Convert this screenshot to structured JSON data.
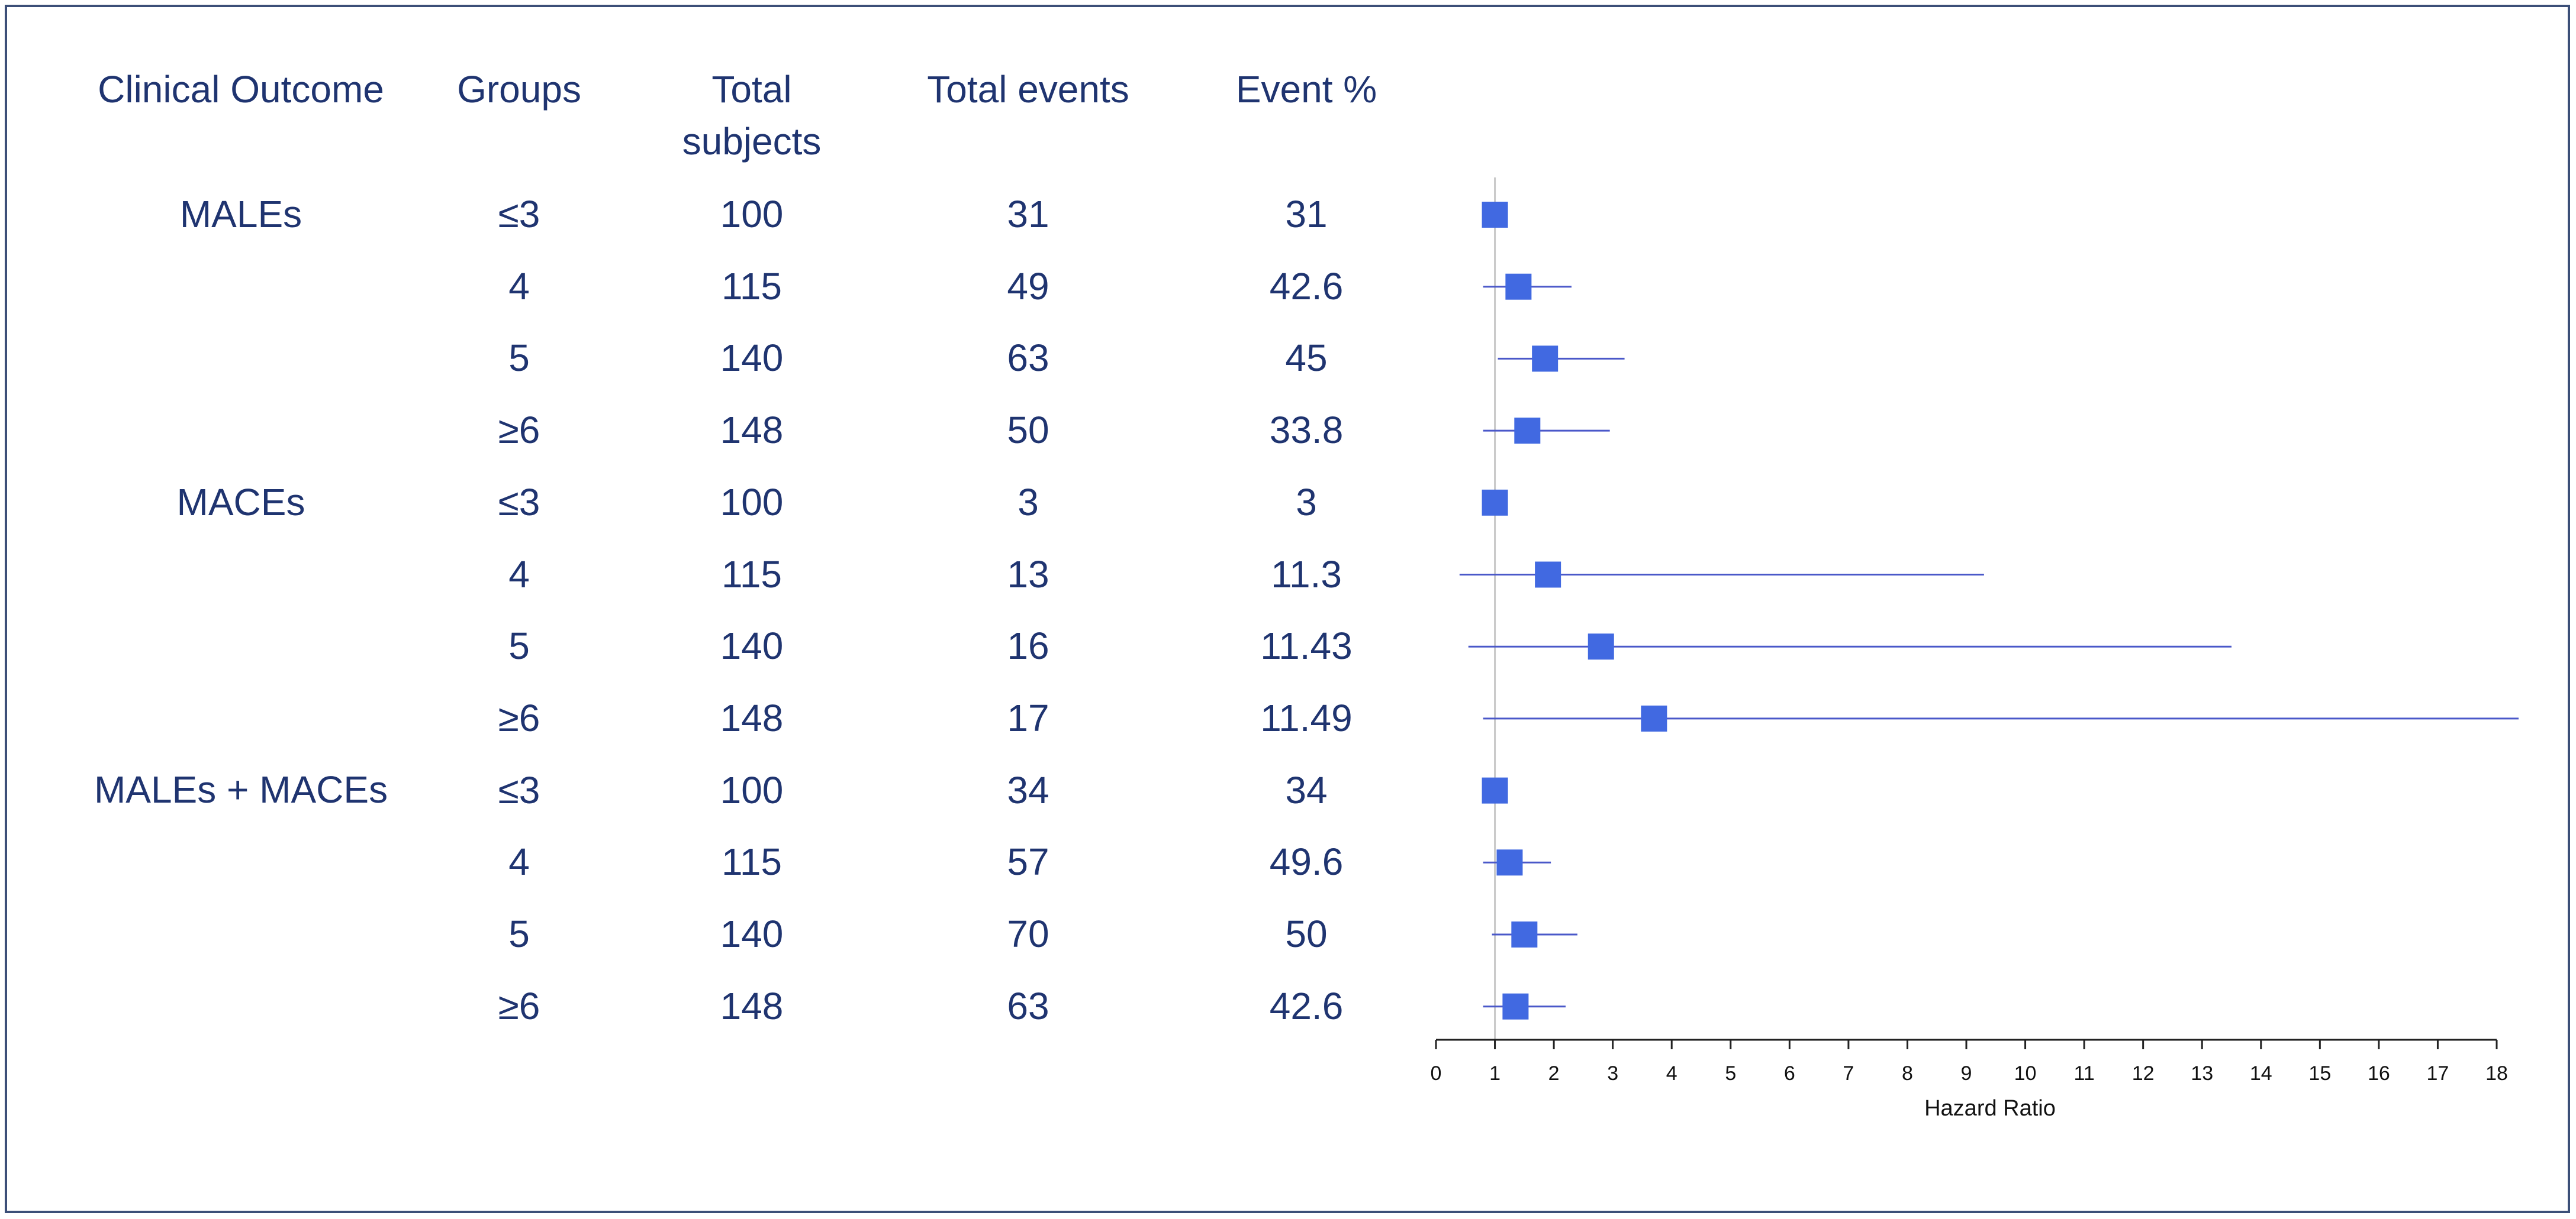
{
  "colors": {
    "text": "#1f3470",
    "marker": "#4169e1",
    "ci_line": "#4a58c9",
    "ref_line": "#c8c8c8",
    "axis": "#222222",
    "border": "#3c4f78"
  },
  "headers": {
    "outcome": "Clinical Outcome",
    "groups": "Groups",
    "total_subjects_1": "Total",
    "total_subjects_2": "subjects",
    "total_events": "Total events",
    "event_pct": "Event %"
  },
  "outcomes": [
    "MALEs",
    "MACEs",
    "MALEs + MACEs"
  ],
  "rows": [
    {
      "group": "≤3",
      "subjects": "100",
      "events": "31",
      "pct": "31"
    },
    {
      "group": "4",
      "subjects": "115",
      "events": "49",
      "pct": "42.6"
    },
    {
      "group": "5",
      "subjects": "140",
      "events": "63",
      "pct": "45"
    },
    {
      "group": "≥6",
      "subjects": "148",
      "events": "50",
      "pct": "33.8"
    },
    {
      "group": "≤3",
      "subjects": "100",
      "events": "3",
      "pct": "3"
    },
    {
      "group": "4",
      "subjects": "115",
      "events": "13",
      "pct": "11.3"
    },
    {
      "group": "5",
      "subjects": "140",
      "events": "16",
      "pct": "11.43"
    },
    {
      "group": "≥6",
      "subjects": "148",
      "events": "17",
      "pct": "11.49"
    },
    {
      "group": "≤3",
      "subjects": "100",
      "events": "34",
      "pct": "34"
    },
    {
      "group": "4",
      "subjects": "115",
      "events": "57",
      "pct": "49.6"
    },
    {
      "group": "5",
      "subjects": "140",
      "events": "70",
      "pct": "50"
    },
    {
      "group": "≥6",
      "subjects": "148",
      "events": "63",
      "pct": "42.6"
    }
  ],
  "chart_data": {
    "type": "forest",
    "xlabel": "Hazard Ratio",
    "xlim": [
      0,
      18
    ],
    "xticks": [
      "0",
      "1",
      "2",
      "3",
      "4",
      "5",
      "6",
      "7",
      "8",
      "9",
      "10",
      "11",
      "12",
      "13",
      "14",
      "15",
      "16",
      "17",
      "18"
    ],
    "reference": 1,
    "estimates": [
      {
        "outcome": "MALEs",
        "group": "≤3",
        "hr": 1.0,
        "lo": 1.0,
        "hi": 1.0
      },
      {
        "outcome": "MALEs",
        "group": "4",
        "hr": 1.4,
        "lo": 0.8,
        "hi": 2.3
      },
      {
        "outcome": "MALEs",
        "group": "5",
        "hr": 1.85,
        "lo": 1.05,
        "hi": 3.2
      },
      {
        "outcome": "MALEs",
        "group": "≥6",
        "hr": 1.55,
        "lo": 0.8,
        "hi": 2.95
      },
      {
        "outcome": "MACEs",
        "group": "≤3",
        "hr": 1.0,
        "lo": 1.0,
        "hi": 1.0
      },
      {
        "outcome": "MACEs",
        "group": "4",
        "hr": 1.9,
        "lo": 0.4,
        "hi": 9.3
      },
      {
        "outcome": "MACEs",
        "group": "5",
        "hr": 2.8,
        "lo": 0.55,
        "hi": 13.5
      },
      {
        "outcome": "MACEs",
        "group": "≥6",
        "hr": 3.7,
        "lo": 0.8,
        "hi": 18.4
      },
      {
        "outcome": "MALEs + MACEs",
        "group": "≤3",
        "hr": 1.0,
        "lo": 1.0,
        "hi": 1.0
      },
      {
        "outcome": "MALEs + MACEs",
        "group": "4",
        "hr": 1.25,
        "lo": 0.8,
        "hi": 1.95
      },
      {
        "outcome": "MALEs + MACEs",
        "group": "5",
        "hr": 1.5,
        "lo": 0.95,
        "hi": 2.4
      },
      {
        "outcome": "MALEs + MACEs",
        "group": "≥6",
        "hr": 1.35,
        "lo": 0.8,
        "hi": 2.2
      }
    ]
  }
}
